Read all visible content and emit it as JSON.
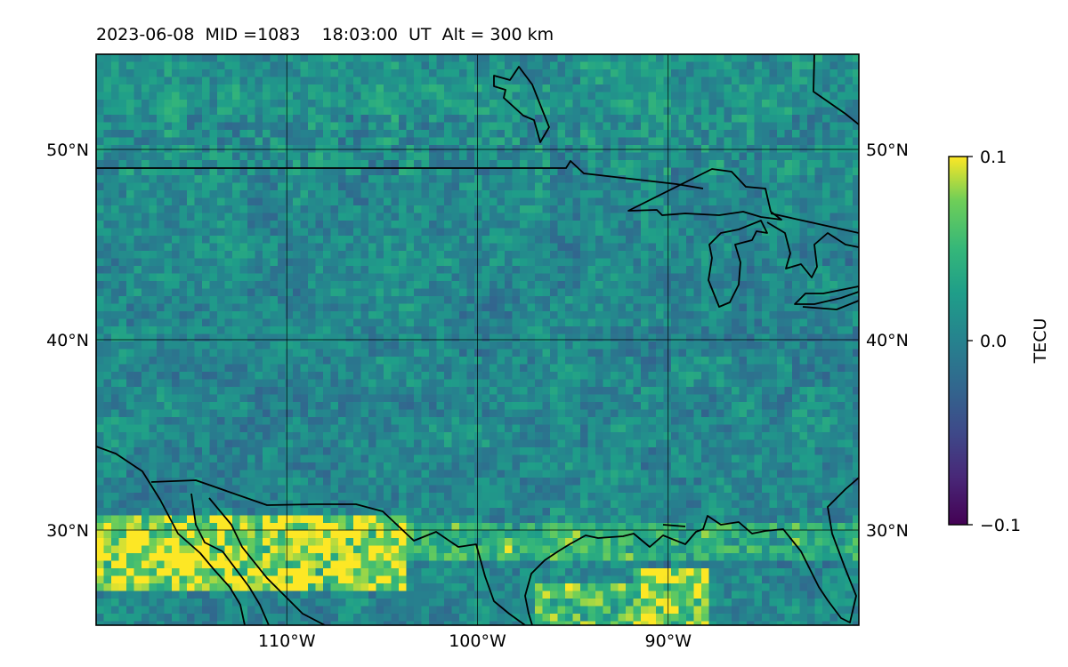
{
  "title": "2023-06-08  MID =1083    18:03:00  UT  Alt = 300 km",
  "map": {
    "projection": "plate-carree",
    "lon_range": [
      -120,
      -80
    ],
    "lat_range": [
      25,
      55
    ],
    "gridlines": true,
    "lon_ticks": [
      {
        "value": -110,
        "label": "110°W"
      },
      {
        "value": -100,
        "label": "100°W"
      },
      {
        "value": -90,
        "label": "90°W"
      }
    ],
    "lat_ticks": [
      {
        "value": 50,
        "label": "50°N"
      },
      {
        "value": 40,
        "label": "40°N"
      },
      {
        "value": 30,
        "label": "30°N"
      }
    ],
    "field": "TEC perturbation",
    "coastlines_and_borders": true
  },
  "colorbar": {
    "label": "TECU",
    "colormap": "viridis",
    "range": [
      -0.1,
      0.1
    ],
    "ticks": [
      {
        "value": 0.1,
        "label": "0.1"
      },
      {
        "value": 0.0,
        "label": "0.0"
      },
      {
        "value": -0.1,
        "label": "−0.1"
      }
    ]
  },
  "colors": {
    "viridis_low": "#440154",
    "viridis_mid": "#21918c",
    "viridis_high": "#fde725",
    "line": "#000000"
  }
}
